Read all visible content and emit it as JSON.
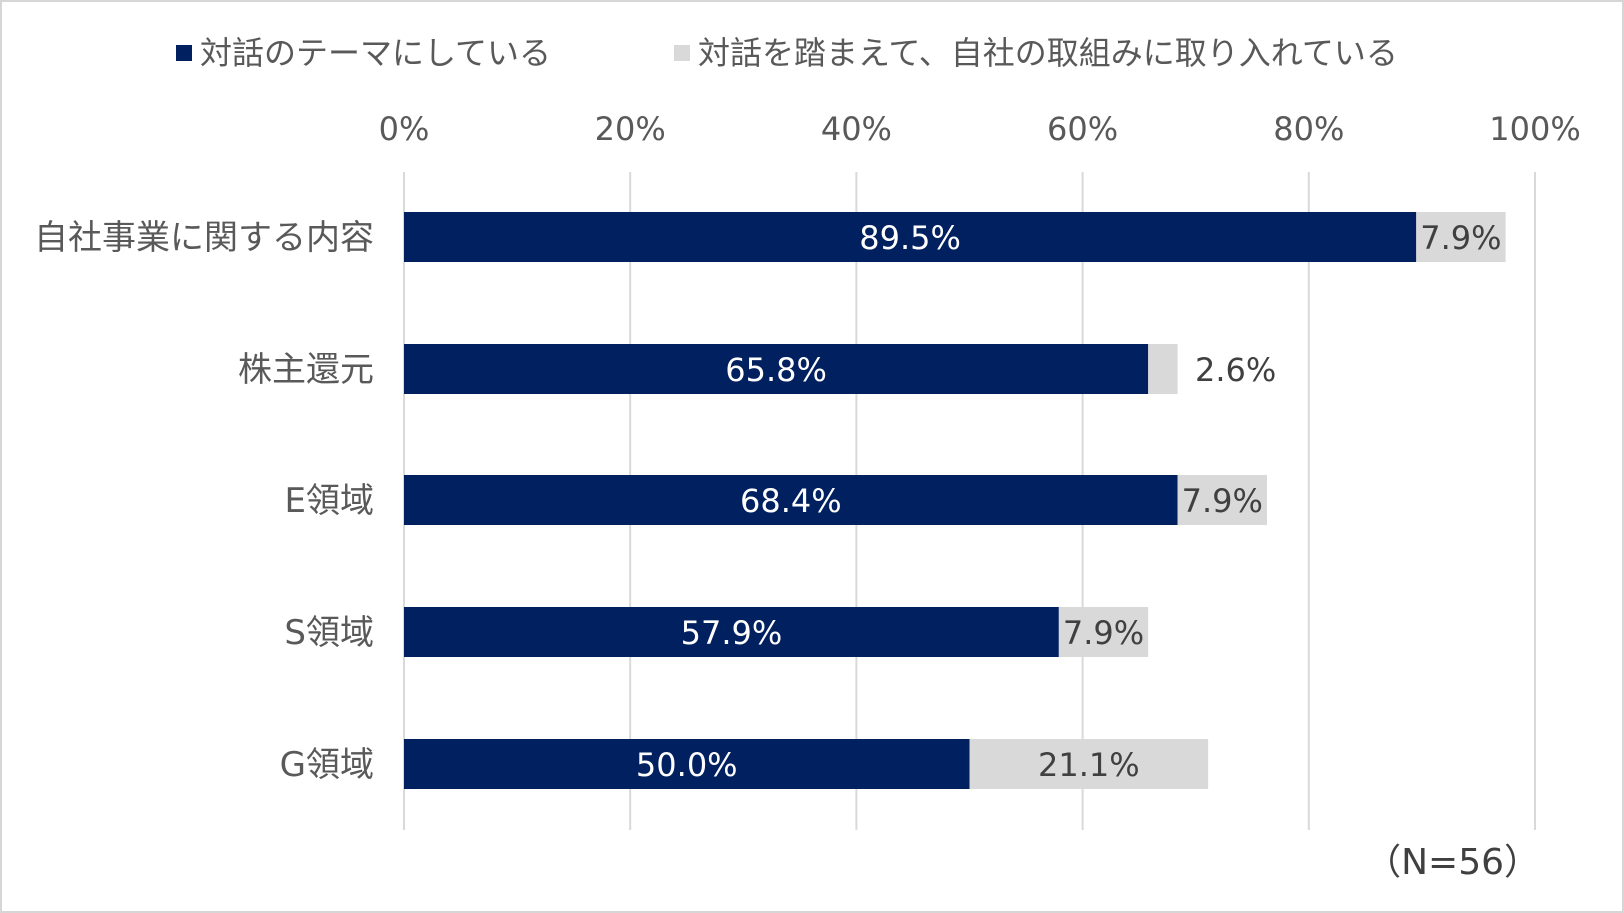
{
  "chart_data": {
    "type": "bar",
    "orientation": "horizontal",
    "stacked": true,
    "categories": [
      "自社事業に関する内容",
      "株主還元",
      "E領域",
      "S領域",
      "G領域"
    ],
    "series": [
      {
        "name": "対話のテーマにしている",
        "values": [
          89.5,
          65.8,
          68.4,
          57.9,
          50.0
        ],
        "labels": [
          "89.5%",
          "65.8%",
          "68.4%",
          "57.9%",
          "50.0%"
        ],
        "color": "#002060"
      },
      {
        "name": "対話を踏まえて、自社の取組みに取り入れている",
        "values": [
          7.9,
          2.6,
          7.9,
          7.9,
          21.1
        ],
        "labels": [
          "7.9%",
          "2.6%",
          "7.9%",
          "7.9%",
          "21.1%"
        ],
        "color": "#d9d9d9"
      }
    ],
    "xlim": [
      0,
      100
    ],
    "x_ticks": [
      "0%",
      "20%",
      "40%",
      "60%",
      "80%",
      "100%"
    ],
    "x_axis_position": "top",
    "grid": true,
    "legend_position": "top",
    "annotation": "（N=56）"
  }
}
